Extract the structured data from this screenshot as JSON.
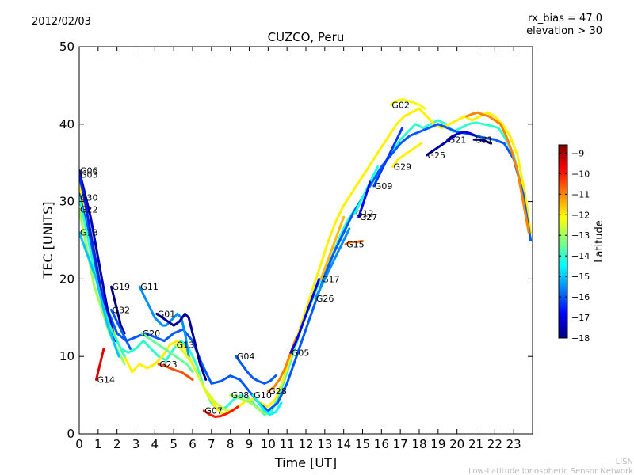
{
  "header": {
    "date": "2012/02/03",
    "params_line1": "rx_bias = 47.0",
    "params_line2": "elevation > 30"
  },
  "footer": {
    "line1": "LISN",
    "line2": "Low-Latitude Ionospheric Sensor Network"
  },
  "chart_data": {
    "type": "scatter",
    "title": "CUZCO, Peru",
    "xlabel": "Time [UT]",
    "ylabel": "TEC [UNITS]",
    "xlim": [
      0,
      24
    ],
    "ylim": [
      0,
      50
    ],
    "xticks": [
      "0",
      "1",
      "2",
      "3",
      "4",
      "5",
      "6",
      "7",
      "8",
      "9",
      "10",
      "11",
      "12",
      "13",
      "14",
      "15",
      "16",
      "17",
      "18",
      "19",
      "20",
      "21",
      "22",
      "23"
    ],
    "yticks": [
      "0",
      "10",
      "20",
      "30",
      "40",
      "50"
    ],
    "grid": false,
    "colorbar": {
      "label": "Latitude",
      "min": -18,
      "max": -8.6,
      "ticks": [
        "−9",
        "−10",
        "−11",
        "−12",
        "−13",
        "−14",
        "−15",
        "−16",
        "−17",
        "−18"
      ],
      "colors": [
        "#00007f",
        "#0000ff",
        "#007fff",
        "#00ffff",
        "#7fff7f",
        "#ffff00",
        "#ff7f00",
        "#ff0000",
        "#7f0000"
      ]
    },
    "series": [
      {
        "name": "G06",
        "lat": -17.5,
        "x": [
          0,
          0.3,
          0.6,
          0.9,
          1.2,
          1.5,
          1.8
        ],
        "y": [
          34,
          31,
          28,
          24,
          20,
          16,
          13
        ]
      },
      {
        "name": "G03",
        "lat": -16.5,
        "x": [
          0,
          0.3,
          0.6,
          0.9,
          1.2,
          1.5,
          1.9
        ],
        "y": [
          33.5,
          30,
          26,
          22,
          18,
          15,
          12
        ]
      },
      {
        "name": "G30",
        "lat": -14.0,
        "x": [
          0,
          0.4,
          0.8,
          1.2,
          1.6,
          2.0,
          2.4
        ],
        "y": [
          30.5,
          26,
          21,
          17,
          14,
          12,
          10
        ]
      },
      {
        "name": "G22",
        "lat": -13.0,
        "x": [
          0,
          0.4,
          0.8,
          1.2,
          1.6,
          2.0,
          2.4
        ],
        "y": [
          29,
          24,
          19,
          16,
          13,
          11,
          9
        ]
      },
      {
        "name": "G18",
        "lat": -15.0,
        "x": [
          0,
          0.3,
          0.6,
          0.9,
          1.2,
          1.5,
          1.8,
          2.1
        ],
        "y": [
          26,
          24,
          22,
          20,
          17,
          14,
          12,
          10
        ]
      },
      {
        "name": "G19",
        "lat": -18.0,
        "x": [
          1.7,
          1.8,
          1.9,
          2.0,
          2.1,
          2.2,
          2.4
        ],
        "y": [
          19,
          18,
          17,
          16,
          15,
          14,
          13
        ]
      },
      {
        "name": "G32",
        "lat": -16.0,
        "x": [
          1.7,
          1.9,
          2.1,
          2.3,
          2.5,
          2.7
        ],
        "y": [
          16,
          15,
          14,
          13,
          12,
          11
        ]
      },
      {
        "name": "G11",
        "lat": -15.5,
        "x": [
          3.2,
          3.4,
          3.6,
          3.8,
          4.0,
          4.2,
          4.4,
          4.6,
          4.8,
          5.0,
          5.2,
          5.4,
          5.6,
          5.8
        ],
        "y": [
          19,
          18,
          17,
          16,
          15,
          14.5,
          14,
          14,
          14.5,
          15,
          15.5,
          15,
          13,
          10
        ]
      },
      {
        "name": "G01",
        "lat": -17.8,
        "x": [
          4.1,
          4.4,
          4.7,
          5.0,
          5.3,
          5.6,
          5.8,
          6.1,
          6.4,
          6.7
        ],
        "y": [
          15.5,
          15,
          14.5,
          14,
          14.5,
          15.5,
          15,
          12,
          9,
          7
        ]
      },
      {
        "name": "G20",
        "lat": -13.5,
        "x": [
          3.3,
          3.6,
          3.9,
          4.2,
          4.5,
          4.8,
          5.1,
          5.4,
          5.7,
          6.0
        ],
        "y": [
          13,
          12.5,
          12,
          11.5,
          11,
          10.5,
          10,
          9.5,
          9,
          8
        ]
      },
      {
        "name": "G13",
        "lat": -12.5,
        "x": [
          5.1,
          5.4,
          5.7,
          6.0,
          6.3,
          6.6,
          6.9,
          7.2,
          7.5,
          7.8,
          8.1
        ],
        "y": [
          11.5,
          11,
          10,
          9,
          7.5,
          6,
          5,
          4,
          3.5,
          3,
          3
        ]
      },
      {
        "name": "G23",
        "lat": -10.5,
        "x": [
          4.2,
          4.5,
          4.8,
          5.1,
          5.4,
          5.7,
          6.0
        ],
        "y": [
          9,
          8.8,
          8.5,
          8.2,
          8,
          7.5,
          7
        ]
      },
      {
        "name": "G14",
        "lat": -9.5,
        "x": [
          0.9,
          1.0,
          1.1,
          1.2,
          1.3
        ],
        "y": [
          7,
          8,
          9,
          10,
          11
        ]
      },
      {
        "name": "G04",
        "lat": -16.0,
        "x": [
          8.3,
          8.6,
          8.9,
          9.2,
          9.5,
          9.8,
          10.1,
          10.4
        ],
        "y": [
          10,
          9,
          8,
          7.2,
          6.8,
          6.5,
          6.8,
          7.5
        ]
      },
      {
        "name": "G07",
        "lat": -10.0,
        "x": [
          6.6,
          6.9,
          7.2,
          7.5,
          7.8,
          8.1,
          8.4
        ],
        "y": [
          3,
          2.5,
          2.2,
          2.3,
          2.6,
          3,
          3.5
        ]
      },
      {
        "name": "G08",
        "lat": -13.0,
        "x": [
          8.0,
          8.3,
          8.6,
          8.9,
          9.2,
          9.5,
          9.8,
          10.1
        ],
        "y": [
          5,
          4.8,
          4.5,
          4.2,
          3.8,
          3.2,
          2.7,
          2.5
        ]
      },
      {
        "name": "G10",
        "lat": -14.5,
        "x": [
          9.2,
          9.5,
          9.8,
          10.1,
          10.4,
          10.7
        ],
        "y": [
          5,
          4,
          3,
          2.5,
          2.8,
          4
        ]
      },
      {
        "name": "G28",
        "lat": -11.0,
        "x": [
          10.0,
          10.3,
          10.6,
          10.9,
          11.2,
          11.5
        ],
        "y": [
          5.5,
          6,
          7,
          8.5,
          10.5,
          12.5
        ]
      },
      {
        "name": "G05",
        "lat": -17.0,
        "x": [
          11.2,
          11.5,
          11.8,
          12.1,
          12.4,
          12.7
        ],
        "y": [
          10.5,
          12,
          14,
          16,
          18,
          20
        ]
      },
      {
        "name": "G26",
        "lat": -15.5,
        "x": [
          12.5,
          12.8,
          13.1,
          13.4,
          13.7,
          14.0,
          14.3
        ],
        "y": [
          17.5,
          19,
          20.5,
          22,
          23.5,
          25,
          26.5
        ]
      },
      {
        "name": "G17",
        "lat": -11.5,
        "x": [
          12.8,
          13.1,
          13.4,
          13.7,
          14.0
        ],
        "y": [
          20,
          22,
          24,
          26,
          28
        ]
      },
      {
        "name": "G15",
        "lat": -10.8,
        "x": [
          14.1,
          14.4,
          14.7,
          15.0
        ],
        "y": [
          24.5,
          24.8,
          24.8,
          24.9
        ]
      },
      {
        "name": "G12",
        "lat": -14.2,
        "x": [
          14.6,
          14.9,
          15.2,
          15.5,
          15.8
        ],
        "y": [
          28.5,
          30,
          31.5,
          33,
          34.5
        ]
      },
      {
        "name": "G27",
        "lat": -16.8,
        "x": [
          14.8,
          15.0,
          15.2,
          15.4
        ],
        "y": [
          28,
          29.5,
          31,
          32.5
        ]
      },
      {
        "name": "G09",
        "lat": -16.3,
        "x": [
          15.6,
          15.9,
          16.2,
          16.5,
          16.8,
          17.1
        ],
        "y": [
          32,
          33.5,
          35,
          36.5,
          38,
          39.5
        ]
      },
      {
        "name": "G29",
        "lat": -12.0,
        "x": [
          16.6,
          16.9,
          17.2,
          17.5,
          17.8,
          18.1
        ],
        "y": [
          34.5,
          35.5,
          36,
          36.5,
          37,
          37.5
        ]
      },
      {
        "name": "G02",
        "lat": -12.2,
        "x": [
          16.5,
          16.8,
          17.1,
          17.4,
          17.7,
          18.0,
          18.3
        ],
        "y": [
          42.5,
          43,
          43.2,
          43,
          42.8,
          42.5,
          42
        ]
      },
      {
        "name": "G25",
        "lat": -17.6,
        "x": [
          18.4,
          18.7,
          19.0,
          19.3,
          19.6,
          19.9
        ],
        "y": [
          36,
          36.5,
          37,
          37.5,
          38,
          38.5
        ]
      },
      {
        "name": "G21",
        "lat": -17.2,
        "x": [
          19.5,
          19.8,
          20.1,
          20.4,
          20.7,
          21.0
        ],
        "y": [
          38,
          38.5,
          38.8,
          39,
          38.8,
          38.5
        ]
      },
      {
        "name": "G31",
        "lat": -18.0,
        "x": [
          20.9,
          21.2,
          21.5,
          21.8
        ],
        "y": [
          38,
          38,
          37.8,
          37.5
        ]
      }
    ],
    "envelope": [
      {
        "lat": -14.0,
        "x": [
          0,
          0.3,
          0.6,
          1.0,
          1.4,
          1.8,
          2.2,
          2.6,
          3.0,
          3.4,
          3.8,
          4.2,
          4.6,
          5.0,
          5.4,
          5.8,
          6.2,
          6.6,
          7.0,
          7.4,
          7.8,
          8.2,
          8.6,
          9.0,
          9.4,
          9.8,
          10.2,
          10.6,
          11.0,
          11.4,
          11.8,
          12.2,
          12.6,
          13.0,
          13.4,
          13.8,
          14.2,
          14.6,
          15.0,
          15.4,
          15.8,
          16.2,
          16.6,
          17.0,
          17.4,
          17.8,
          18.2,
          18.6,
          19.0,
          19.4,
          19.8,
          20.2,
          20.6,
          21.0,
          21.4,
          21.8,
          22.2,
          22.6,
          23.0,
          23.4,
          23.8
        ],
        "y": [
          33,
          30,
          26,
          21,
          17,
          13,
          11,
          10.5,
          11,
          12,
          11,
          10,
          9.5,
          11,
          12,
          11,
          9,
          6,
          4,
          3,
          3.5,
          4.5,
          5,
          4.5,
          3.5,
          2.5,
          3,
          5,
          8,
          11,
          14,
          16.5,
          19,
          21,
          23,
          25.5,
          27.5,
          29,
          30.5,
          32,
          33.5,
          35,
          36.5,
          38,
          39,
          40,
          39.5,
          40,
          40.5,
          40,
          39,
          39.5,
          40,
          40.2,
          40,
          39.8,
          39.5,
          38,
          36,
          32,
          27
        ]
      },
      {
        "lat": -12.0,
        "x": [
          0,
          0.4,
          0.8,
          1.2,
          1.6,
          2.0,
          2.4,
          2.8,
          3.2,
          3.6,
          4.0,
          4.4,
          4.8,
          5.2,
          5.6,
          6.0,
          6.4,
          6.8,
          7.2,
          7.6,
          8.0,
          8.4,
          8.8,
          9.2,
          9.6,
          10.0,
          10.4,
          10.8,
          11.2,
          11.6,
          12.0,
          12.4,
          12.8,
          13.2,
          13.6,
          14.0,
          14.4,
          14.8,
          15.2,
          15.6,
          16.0,
          16.4,
          16.8,
          17.2,
          17.6,
          18.0,
          18.4,
          18.8,
          19.2,
          19.6,
          20.0,
          20.4,
          20.8,
          21.2,
          21.6,
          22.0,
          22.4,
          22.8,
          23.2,
          23.6,
          23.9
        ],
        "y": [
          32,
          28,
          24,
          19,
          15,
          12,
          10,
          8,
          9,
          8.5,
          9,
          10,
          11.5,
          12,
          11,
          9,
          7,
          5,
          3.5,
          2.5,
          2.8,
          3.5,
          4.2,
          4.5,
          4,
          3.5,
          4.5,
          7,
          10,
          13,
          16,
          19,
          22,
          25,
          27.5,
          29.5,
          31,
          32.5,
          34,
          35.5,
          37,
          38.5,
          40,
          41,
          41.5,
          42,
          41,
          40,
          39.5,
          40,
          40.5,
          41,
          40.5,
          41,
          41.5,
          41,
          40,
          38.5,
          36,
          31,
          26
        ]
      },
      {
        "lat": -16.0,
        "x": [
          0,
          0.5,
          1.0,
          1.5,
          2.0,
          2.5,
          3.0,
          3.5,
          4.0,
          4.5,
          5.0,
          5.5,
          6.0,
          6.5,
          7.0,
          7.5,
          8.0,
          8.5,
          9.0,
          9.5,
          10.0,
          10.5,
          11.0,
          11.5,
          12.0,
          12.5,
          13.0,
          13.5,
          14.0,
          14.5,
          15.0,
          15.5,
          16.0,
          16.5,
          17.0,
          17.5,
          18.0,
          18.5,
          19.0,
          19.5,
          20.0,
          20.5,
          21.0,
          21.5,
          22.0,
          22.5,
          23.0,
          23.5,
          23.9
        ],
        "y": [
          31,
          26,
          20,
          16,
          13,
          12,
          12.5,
          13,
          12.5,
          12,
          13,
          13.5,
          12,
          9,
          6.5,
          6.8,
          7.5,
          7,
          5.5,
          4,
          3,
          4,
          6.5,
          10,
          13.5,
          17,
          20.5,
          23.5,
          26,
          28.5,
          30.5,
          32.5,
          34.5,
          36,
          37.5,
          38.5,
          39,
          39.5,
          40,
          39.5,
          39,
          38.8,
          38.5,
          38.2,
          38,
          37.5,
          35.5,
          31,
          25
        ]
      },
      {
        "lat": -11.0,
        "x": [
          20.5,
          20.8,
          21.1,
          21.4,
          21.7,
          22.0,
          22.3,
          22.6,
          22.9,
          23.2,
          23.5,
          23.8
        ],
        "y": [
          41,
          41.3,
          41.5,
          41.2,
          41,
          40.5,
          40,
          38.5,
          36.5,
          34,
          30,
          26
        ]
      }
    ]
  }
}
